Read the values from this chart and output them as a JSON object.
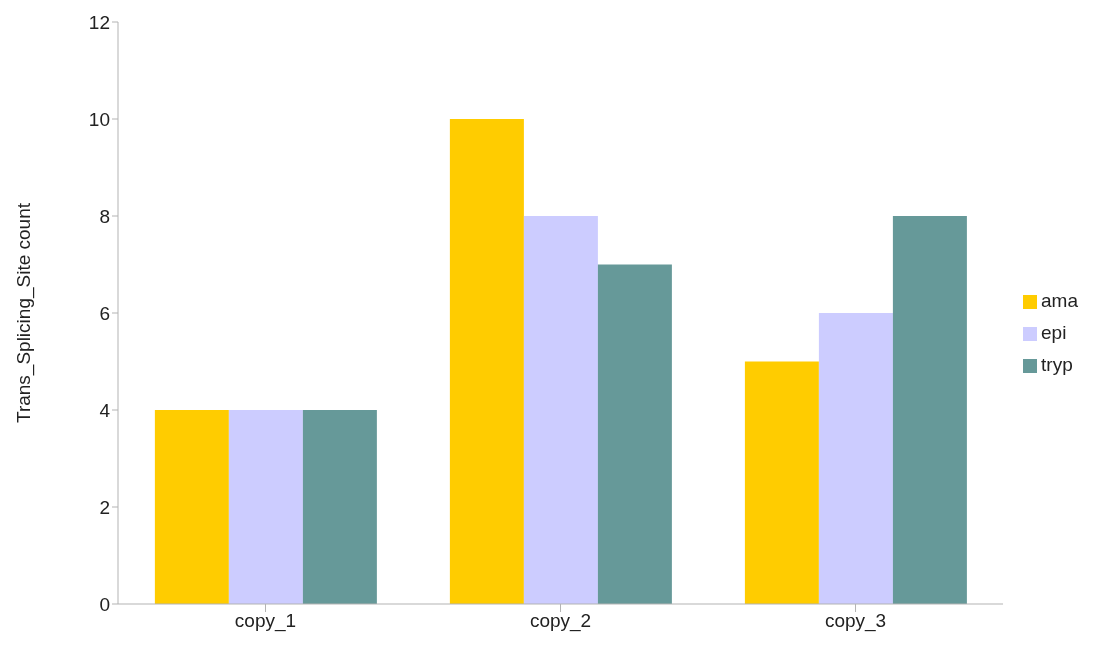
{
  "chart_data": {
    "type": "bar",
    "ylabel": "Trans_Splicing_Site count",
    "categories": [
      "copy_1",
      "copy_2",
      "copy_3"
    ],
    "series": [
      {
        "name": "ama",
        "color": "#ffcc00",
        "values": [
          4,
          10,
          5
        ]
      },
      {
        "name": "epi",
        "color": "#ccccff",
        "values": [
          4,
          8,
          6
        ]
      },
      {
        "name": "tryp",
        "color": "#669999",
        "values": [
          4,
          7,
          8
        ]
      }
    ],
    "ylim": [
      0,
      12
    ],
    "yticks": [
      0,
      2,
      4,
      6,
      8,
      10,
      12
    ],
    "grid": false,
    "legend": "right"
  }
}
